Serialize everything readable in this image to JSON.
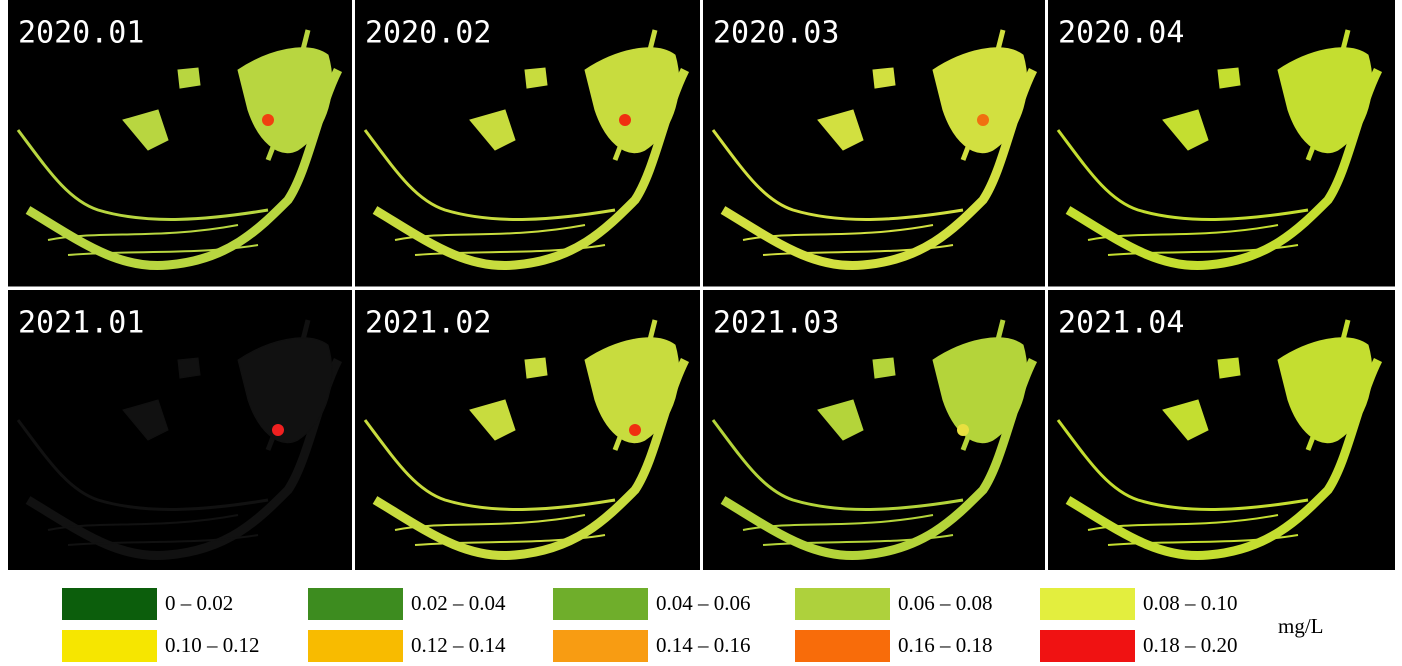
{
  "panels": [
    {
      "label": "2020.01"
    },
    {
      "label": "2020.02"
    },
    {
      "label": "2020.03"
    },
    {
      "label": "2020.04"
    },
    {
      "label": "2021.01"
    },
    {
      "label": "2021.02"
    },
    {
      "label": "2021.03"
    },
    {
      "label": "2021.04"
    }
  ],
  "legend": {
    "unit": "mg/L",
    "items": [
      {
        "label": "0 – 0.02",
        "color": "#0c5e0c"
      },
      {
        "label": "0.02 – 0.04",
        "color": "#3d8c1f"
      },
      {
        "label": "0.04 – 0.06",
        "color": "#6fae2b"
      },
      {
        "label": "0.06 – 0.08",
        "color": "#aed13c"
      },
      {
        "label": "0.08 – 0.10",
        "color": "#e3ee3e"
      },
      {
        "label": "0.10 – 0.12",
        "color": "#f6e600"
      },
      {
        "label": "0.12 – 0.14",
        "color": "#f8bb00"
      },
      {
        "label": "0.14 – 0.16",
        "color": "#f89c12"
      },
      {
        "label": "0.16 – 0.18",
        "color": "#f86c0a"
      },
      {
        "label": "0.18 – 0.20",
        "color": "#f01212"
      }
    ]
  }
}
